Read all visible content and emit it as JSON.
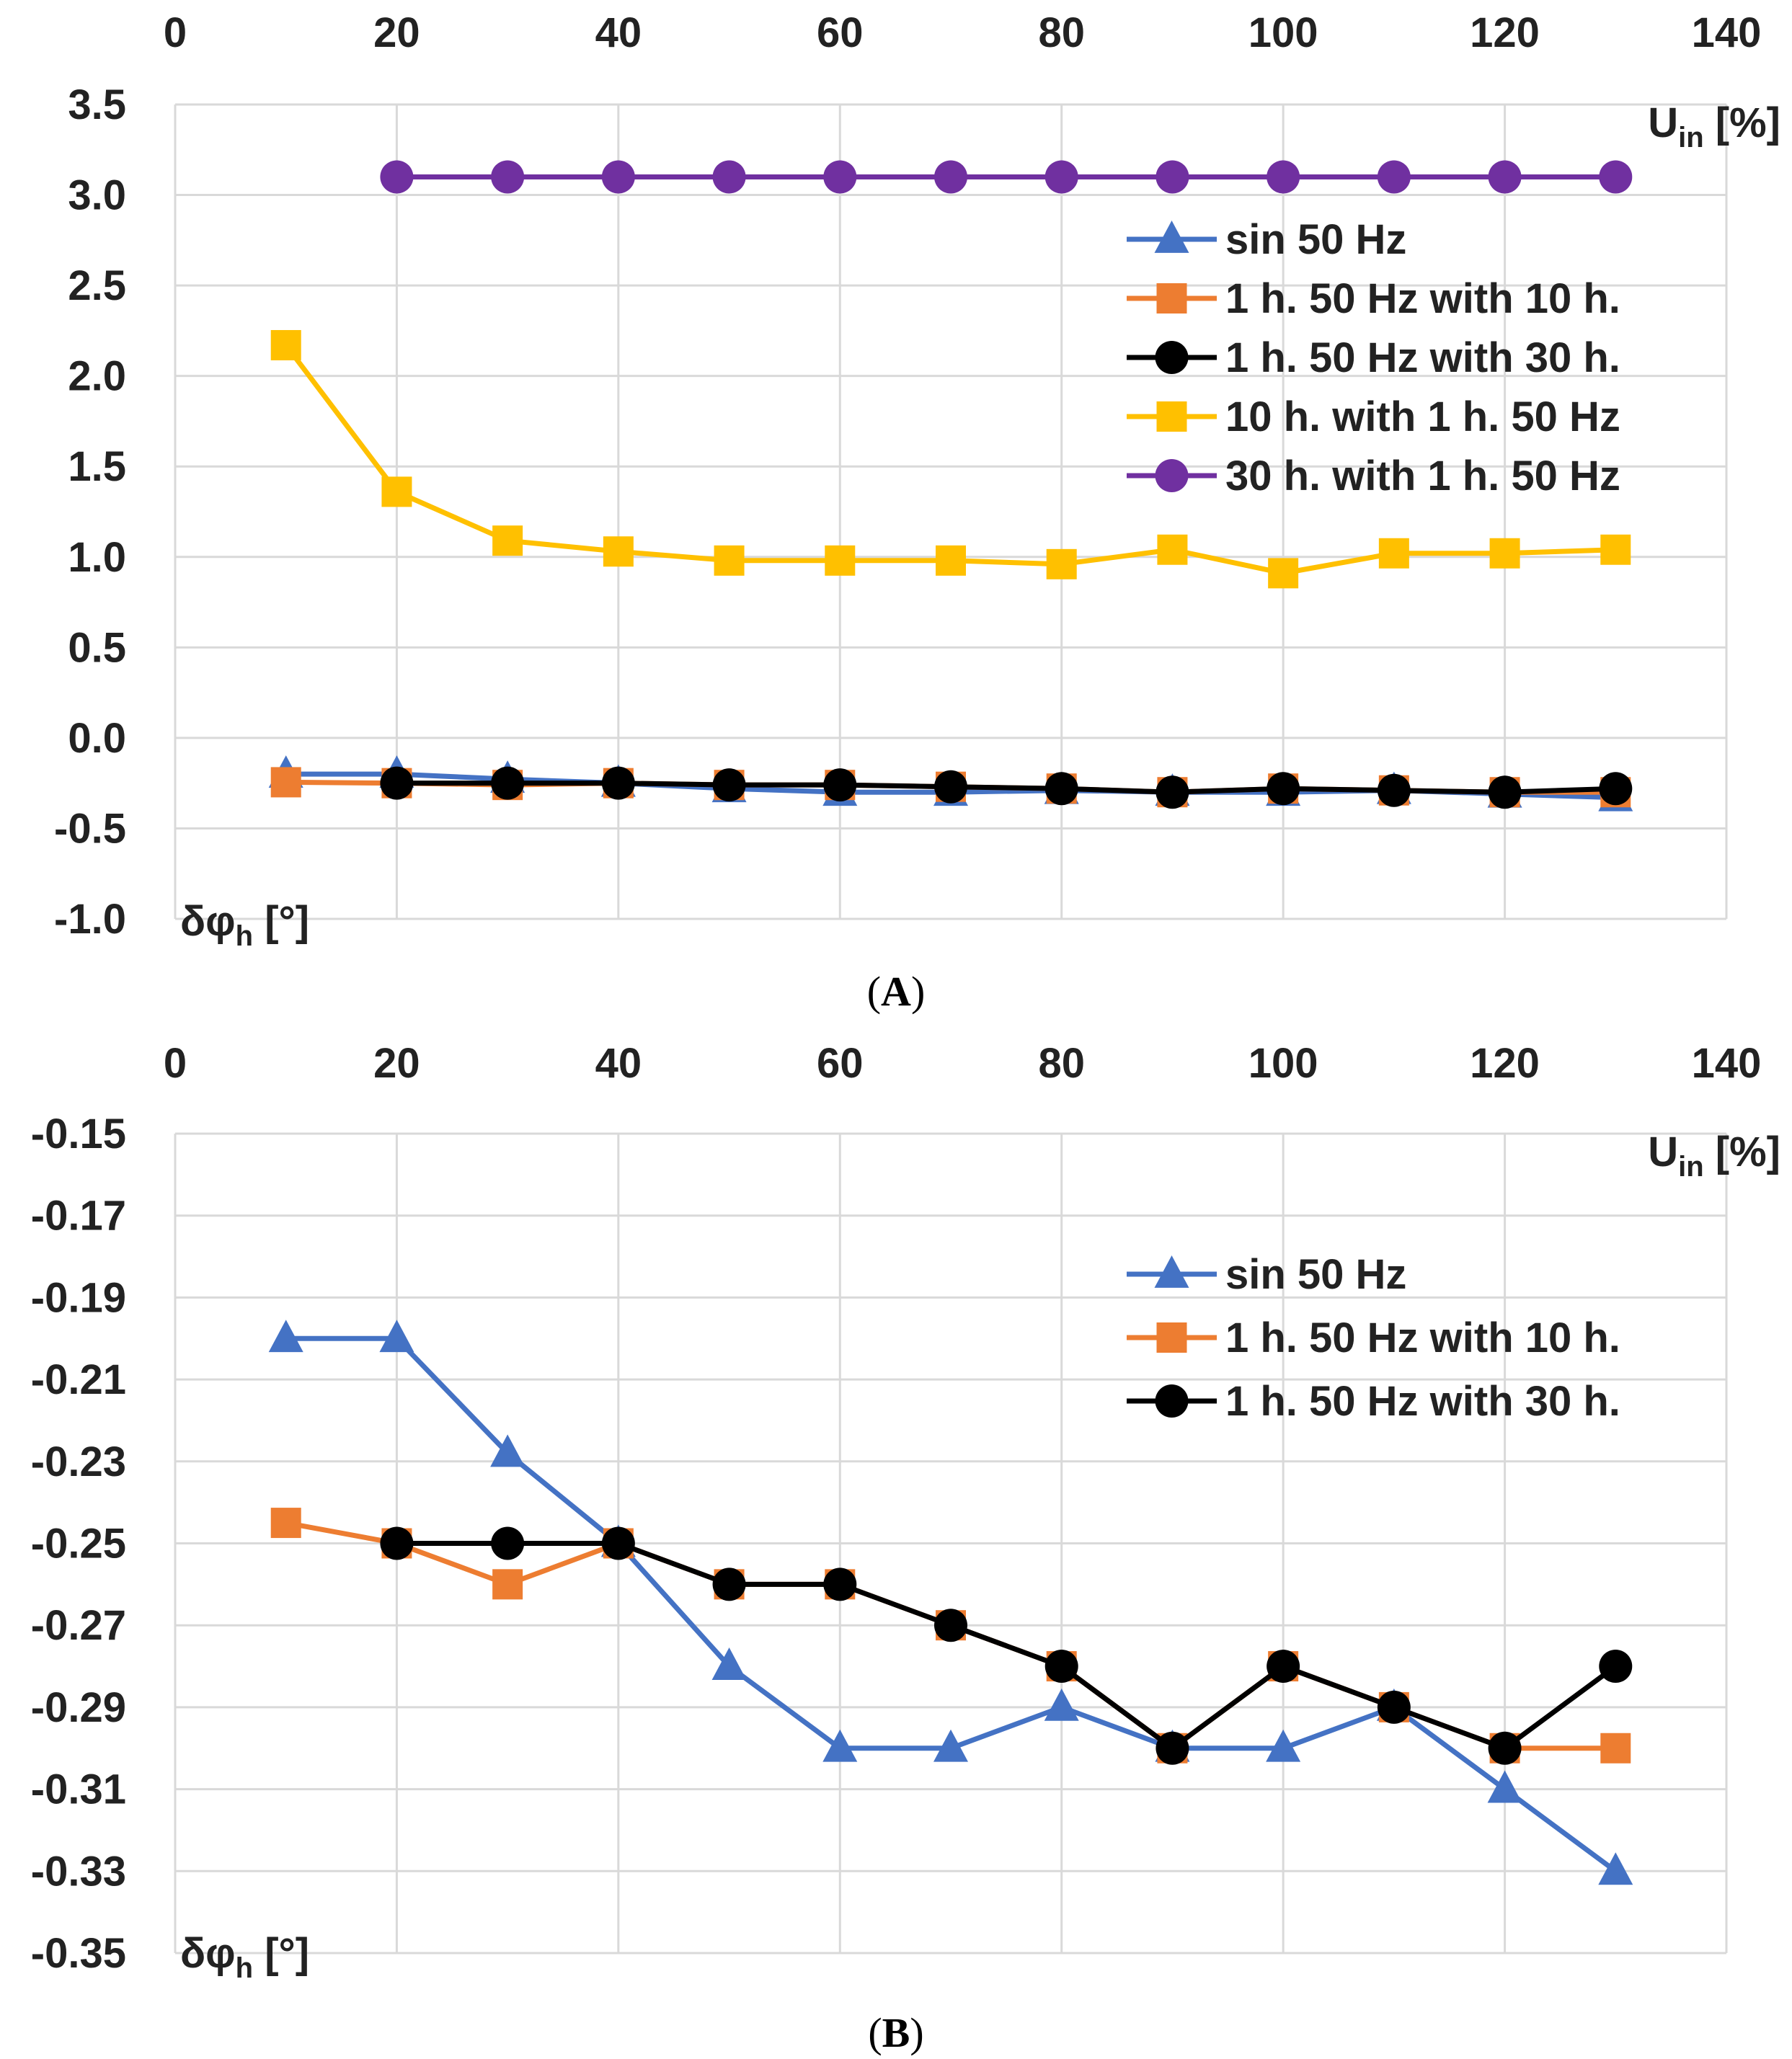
{
  "chart_data": [
    {
      "type": "line",
      "panel_label": "A",
      "xlabel": "U",
      "xlabel_sub": "in",
      "xlabel_unit": " [%]",
      "ylabel": "δφ",
      "ylabel_sub": "h",
      "ylabel_unit": " [°]",
      "xlim": [
        0,
        140
      ],
      "ylim": [
        -1.0,
        3.5
      ],
      "xticks": [
        0,
        20,
        40,
        60,
        80,
        100,
        120,
        140
      ],
      "xtick_labels": [
        "0",
        "20",
        "40",
        "60",
        "80",
        "100",
        "120",
        "140"
      ],
      "yticks": [
        -1.0,
        -0.5,
        0.0,
        0.5,
        1.0,
        1.5,
        2.0,
        2.5,
        3.0,
        3.5
      ],
      "ytick_labels": [
        "-1.0",
        "-0.5",
        "0.0",
        "0.5",
        "1.0",
        "1.5",
        "2.0",
        "2.5",
        "3.0",
        "3.5"
      ],
      "grid": true,
      "legend_position": "top-right",
      "series": [
        {
          "name": "sin 50 Hz",
          "color": "#4472C4",
          "marker": "triangle",
          "x": [
            10,
            20,
            30,
            40,
            50,
            60,
            70,
            80,
            90,
            100,
            110,
            120,
            130
          ],
          "y": [
            -0.2,
            -0.2,
            -0.228,
            -0.25,
            -0.28,
            -0.3,
            -0.3,
            -0.29,
            -0.3,
            -0.3,
            -0.29,
            -0.31,
            -0.33
          ]
        },
        {
          "name": "1 h. 50 Hz with 10 h.",
          "color": "#ED7D31",
          "marker": "square",
          "x": [
            10,
            20,
            30,
            40,
            50,
            60,
            70,
            80,
            90,
            100,
            110,
            120,
            130
          ],
          "y": [
            -0.245,
            -0.25,
            -0.26,
            -0.25,
            -0.26,
            -0.26,
            -0.27,
            -0.28,
            -0.3,
            -0.28,
            -0.29,
            -0.3,
            -0.3
          ]
        },
        {
          "name": "1 h. 50 Hz with 30 h.",
          "color": "#000000",
          "marker": "circle",
          "x": [
            20,
            30,
            40,
            50,
            60,
            70,
            80,
            90,
            100,
            110,
            120,
            130
          ],
          "y": [
            -0.25,
            -0.25,
            -0.25,
            -0.26,
            -0.26,
            -0.27,
            -0.28,
            -0.3,
            -0.28,
            -0.29,
            -0.3,
            -0.28
          ]
        },
        {
          "name": "10 h. with 1 h. 50 Hz",
          "color": "#FFC000",
          "marker": "square",
          "x": [
            10,
            20,
            30,
            40,
            50,
            60,
            70,
            80,
            90,
            100,
            110,
            120,
            130
          ],
          "y": [
            2.17,
            1.36,
            1.09,
            1.03,
            0.98,
            0.98,
            0.98,
            0.96,
            1.04,
            0.91,
            1.02,
            1.02,
            1.04
          ]
        },
        {
          "name": "30 h. with 1 h. 50 Hz",
          "color": "#7030A0",
          "marker": "circle",
          "x": [
            20,
            30,
            40,
            50,
            60,
            70,
            80,
            90,
            100,
            110,
            120,
            130
          ],
          "y": [
            3.1,
            3.1,
            3.1,
            3.1,
            3.1,
            3.1,
            3.1,
            3.1,
            3.1,
            3.1,
            3.1,
            3.1
          ]
        }
      ]
    },
    {
      "type": "line",
      "panel_label": "B",
      "xlabel": "U",
      "xlabel_sub": "in",
      "xlabel_unit": " [%]",
      "ylabel": "δφ",
      "ylabel_sub": "h",
      "ylabel_unit": " [°]",
      "xlim": [
        0,
        140
      ],
      "ylim": [
        -0.35,
        -0.15
      ],
      "xticks": [
        0,
        20,
        40,
        60,
        80,
        100,
        120,
        140
      ],
      "xtick_labels": [
        "0",
        "20",
        "40",
        "60",
        "80",
        "100",
        "120",
        "140"
      ],
      "yticks": [
        -0.35,
        -0.33,
        -0.31,
        -0.29,
        -0.27,
        -0.25,
        -0.23,
        -0.21,
        -0.19,
        -0.17,
        -0.15
      ],
      "ytick_labels": [
        "-0.35",
        "-0.33",
        "-0.31",
        "-0.29",
        "-0.27",
        "-0.25",
        "-0.23",
        "-0.21",
        "-0.19",
        "-0.17",
        "-0.15"
      ],
      "grid": true,
      "legend_position": "top-right",
      "series": [
        {
          "name": "sin 50 Hz",
          "color": "#4472C4",
          "marker": "triangle",
          "x": [
            10,
            20,
            30,
            40,
            50,
            60,
            70,
            80,
            90,
            100,
            110,
            120,
            130
          ],
          "y": [
            -0.2,
            -0.2,
            -0.228,
            -0.25,
            -0.28,
            -0.3,
            -0.3,
            -0.29,
            -0.3,
            -0.3,
            -0.29,
            -0.31,
            -0.33
          ]
        },
        {
          "name": "1 h. 50 Hz with 10 h.",
          "color": "#ED7D31",
          "marker": "square",
          "x": [
            10,
            20,
            30,
            40,
            50,
            60,
            70,
            80,
            90,
            100,
            110,
            120,
            130
          ],
          "y": [
            -0.245,
            -0.25,
            -0.26,
            -0.25,
            -0.26,
            -0.26,
            -0.27,
            -0.28,
            -0.3,
            -0.28,
            -0.29,
            -0.3,
            -0.3
          ]
        },
        {
          "name": "1 h. 50 Hz with 30 h.",
          "color": "#000000",
          "marker": "circle",
          "x": [
            20,
            30,
            40,
            50,
            60,
            70,
            80,
            90,
            100,
            110,
            120,
            130
          ],
          "y": [
            -0.25,
            -0.25,
            -0.25,
            -0.26,
            -0.26,
            -0.27,
            -0.28,
            -0.3,
            -0.28,
            -0.29,
            -0.3,
            -0.28
          ]
        }
      ]
    }
  ]
}
